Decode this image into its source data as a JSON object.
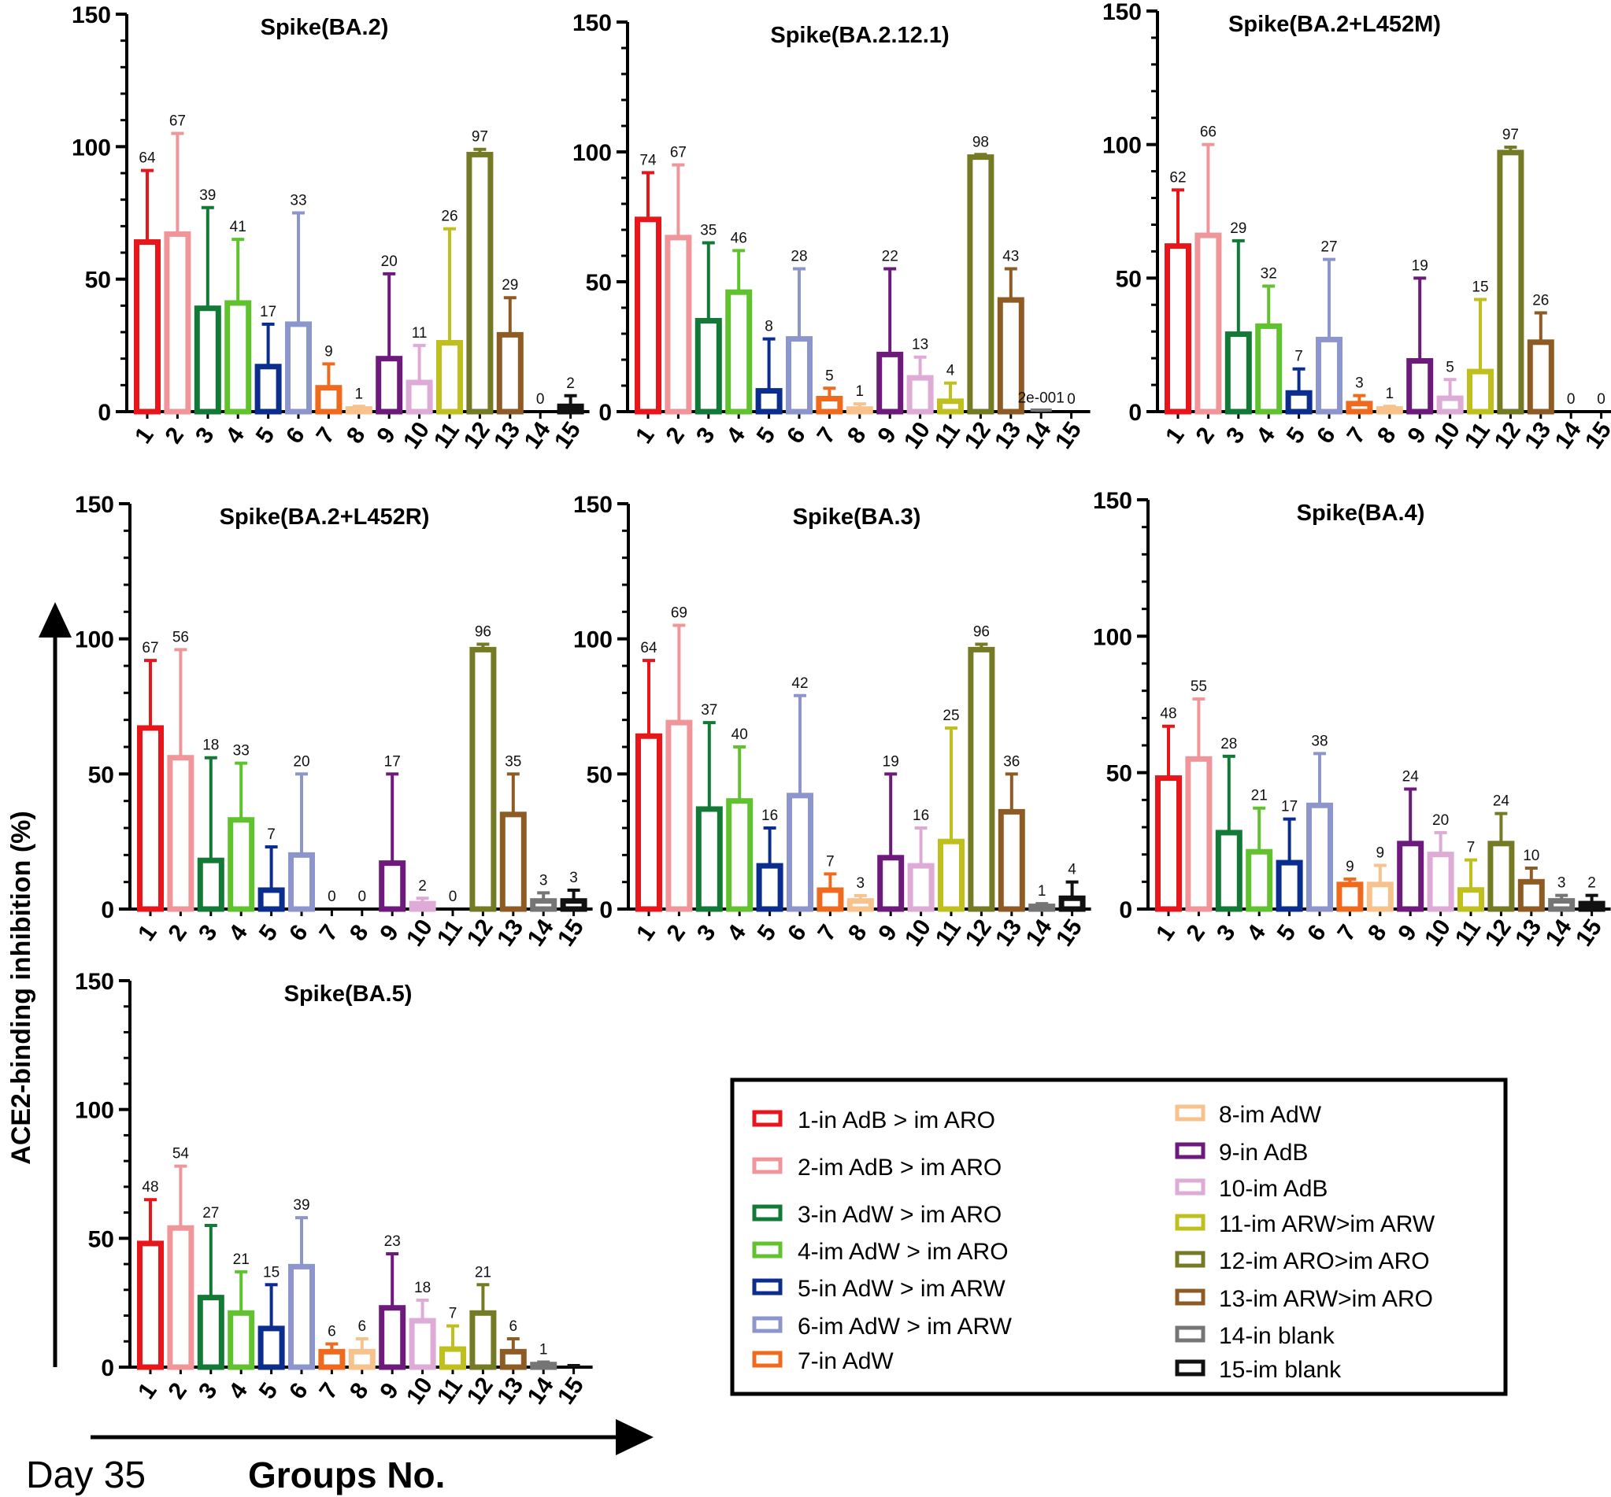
{
  "colors": [
    "#e8151b",
    "#f0969a",
    "#127a36",
    "#5fc22e",
    "#0b2d8e",
    "#8c96cd",
    "#ef6a1c",
    "#f7c28c",
    "#6e1a7d",
    "#deaad6",
    "#bfbf1e",
    "#757a24",
    "#8f5b24",
    "#757575",
    "#111111"
  ],
  "chart_data": [
    {
      "type": "bar",
      "title": "Spike(BA.2)",
      "categories": [
        "1",
        "2",
        "3",
        "4",
        "5",
        "6",
        "7",
        "8",
        "9",
        "10",
        "11",
        "12",
        "13",
        "14",
        "15"
      ],
      "values": [
        64,
        67,
        39,
        41,
        17,
        33,
        9,
        1,
        20,
        11,
        26,
        97,
        29,
        0,
        2
      ],
      "labels": [
        "64",
        "67",
        "39",
        "41",
        "17",
        "33",
        "9",
        "1",
        "20",
        "11",
        "26",
        "97",
        "29",
        "0",
        "2"
      ],
      "errors": [
        91,
        105,
        77,
        65,
        33,
        75,
        18,
        2,
        52,
        25,
        69,
        99,
        43,
        0,
        6
      ],
      "yticks": [
        "0",
        "50",
        "100",
        "150"
      ],
      "ylim": [
        0,
        150
      ]
    },
    {
      "type": "bar",
      "title": "Spike(BA.2.12.1)",
      "categories": [
        "1",
        "2",
        "3",
        "4",
        "5",
        "6",
        "7",
        "8",
        "9",
        "10",
        "11",
        "12",
        "13",
        "14",
        "15"
      ],
      "values": [
        74,
        67,
        35,
        46,
        8,
        28,
        5,
        1,
        22,
        13,
        4,
        98,
        43,
        0.2,
        0
      ],
      "labels": [
        "74",
        "67",
        "35",
        "46",
        "8",
        "28",
        "5",
        "1",
        "22",
        "13",
        "4",
        "98",
        "43",
        "2e-001",
        "0"
      ],
      "errors": [
        92,
        95,
        65,
        62,
        28,
        55,
        9,
        3,
        55,
        21,
        11,
        99,
        55,
        0.5,
        0
      ],
      "yticks": [
        "0",
        "50",
        "100",
        "150"
      ],
      "ylim": [
        0,
        150
      ]
    },
    {
      "type": "bar",
      "title": "Spike(BA.2+L452M)",
      "categories": [
        "1",
        "2",
        "3",
        "4",
        "5",
        "6",
        "7",
        "8",
        "9",
        "10",
        "11",
        "12",
        "13",
        "14",
        "15"
      ],
      "values": [
        62,
        66,
        29,
        32,
        7,
        27,
        3,
        1,
        19,
        5,
        15,
        97,
        26,
        0,
        0
      ],
      "labels": [
        "62",
        "66",
        "29",
        "32",
        "7",
        "27",
        "3",
        "1",
        "19",
        "5",
        "15",
        "97",
        "26",
        "0",
        "0"
      ],
      "errors": [
        83,
        100,
        64,
        47,
        16,
        57,
        6,
        2,
        50,
        12,
        42,
        99,
        37,
        0,
        0
      ],
      "yticks": [
        "0",
        "50",
        "100",
        "150"
      ],
      "ylim": [
        0,
        150
      ]
    },
    {
      "type": "bar",
      "title": "Spike(BA.2+L452R)",
      "categories": [
        "1",
        "2",
        "3",
        "4",
        "5",
        "6",
        "7",
        "8",
        "9",
        "10",
        "11",
        "12",
        "13",
        "14",
        "15"
      ],
      "values": [
        67,
        56,
        18,
        33,
        7,
        20,
        0,
        0,
        17,
        2,
        0,
        96,
        35,
        3,
        3
      ],
      "labels": [
        "67",
        "56",
        "18",
        "33",
        "7",
        "20",
        "0",
        "0",
        "17",
        "2",
        "0",
        "96",
        "35",
        "3",
        "3"
      ],
      "errors": [
        92,
        96,
        56,
        54,
        23,
        50,
        0,
        0,
        50,
        4,
        0,
        98,
        50,
        6,
        7
      ],
      "yticks": [
        "0",
        "50",
        "100",
        "150"
      ],
      "ylim": [
        0,
        150
      ]
    },
    {
      "type": "bar",
      "title": "Spike(BA.3)",
      "categories": [
        "1",
        "2",
        "3",
        "4",
        "5",
        "6",
        "7",
        "8",
        "9",
        "10",
        "11",
        "12",
        "13",
        "14",
        "15"
      ],
      "values": [
        64,
        69,
        37,
        40,
        16,
        42,
        7,
        3,
        19,
        16,
        25,
        96,
        36,
        1,
        4
      ],
      "labels": [
        "64",
        "69",
        "37",
        "40",
        "16",
        "42",
        "7",
        "3",
        "19",
        "16",
        "25",
        "96",
        "36",
        "1",
        "4"
      ],
      "errors": [
        92,
        105,
        69,
        60,
        30,
        79,
        13,
        5,
        50,
        30,
        67,
        98,
        50,
        2,
        10
      ],
      "yticks": [
        "0",
        "50",
        "100",
        "150"
      ],
      "ylim": [
        0,
        150
      ]
    },
    {
      "type": "bar",
      "title": "Spike(BA.4)",
      "categories": [
        "1",
        "2",
        "3",
        "4",
        "5",
        "6",
        "7",
        "8",
        "9",
        "10",
        "11",
        "12",
        "13",
        "14",
        "15"
      ],
      "values": [
        48,
        55,
        28,
        21,
        17,
        38,
        9,
        9,
        24,
        20,
        7,
        24,
        10,
        3,
        2
      ],
      "labels": [
        "48",
        "55",
        "28",
        "21",
        "17",
        "38",
        "9",
        "9",
        "24",
        "20",
        "7",
        "24",
        "10",
        "3",
        "2"
      ],
      "errors": [
        67,
        77,
        56,
        37,
        33,
        57,
        11,
        16,
        44,
        28,
        18,
        35,
        15,
        5,
        5
      ],
      "yticks": [
        "0",
        "50",
        "100",
        "150"
      ],
      "ylim": [
        0,
        150
      ]
    },
    {
      "type": "bar",
      "title": "Spike(BA.5)",
      "categories": [
        "1",
        "2",
        "3",
        "4",
        "5",
        "6",
        "7",
        "8",
        "9",
        "10",
        "11",
        "12",
        "13",
        "14",
        "15"
      ],
      "values": [
        48,
        54,
        27,
        21,
        15,
        39,
        6,
        6,
        23,
        18,
        7,
        21,
        6,
        1,
        0
      ],
      "labels": [
        "48",
        "54",
        "27",
        "21",
        "15",
        "39",
        "6",
        "6",
        "23",
        "18",
        "7",
        "21",
        "6",
        "1",
        ""
      ],
      "errors": [
        65,
        78,
        55,
        37,
        32,
        58,
        9,
        11,
        44,
        26,
        16,
        32,
        11,
        2,
        0.6
      ],
      "yticks": [
        "0",
        "50",
        "100",
        "150"
      ],
      "ylim": [
        0,
        150
      ]
    }
  ],
  "legend": {
    "left": [
      "1-in AdB > im ARO",
      "2-im AdB > im ARO",
      "3-in AdW > im ARO",
      "4-im AdW > im ARO",
      "5-in AdW > im ARW",
      "6-im AdW > im ARW",
      "7-in AdW"
    ],
    "right": [
      "8-im AdW",
      "9-in AdB",
      "10-im AdB",
      "11-im ARW>im ARW",
      "12-im ARO>im ARO",
      "13-im ARW>im ARO",
      "14-in blank",
      "15-im blank"
    ]
  },
  "y_axis_label": "ACE2-binding inhibition (%)",
  "x_axis_label": "Groups No.",
  "day_label": "Day 35"
}
